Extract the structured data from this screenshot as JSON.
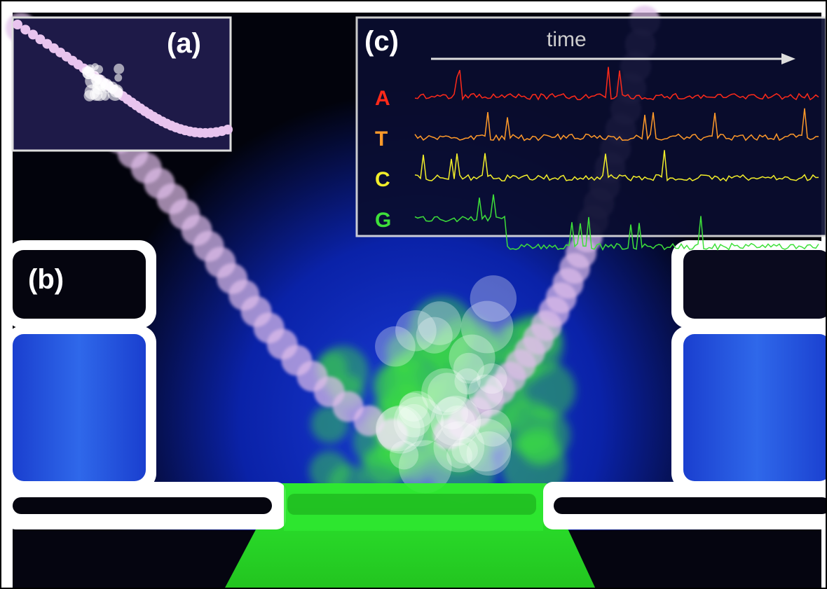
{
  "panels": {
    "a": {
      "label": "(a)"
    },
    "b": {
      "label": "(b)"
    },
    "c": {
      "label": "(c)",
      "axis_label": "time",
      "traces": [
        {
          "label": "A",
          "color": "#ff2a1a"
        },
        {
          "label": "T",
          "color": "#ff9a2a"
        },
        {
          "label": "C",
          "color": "#f2ee2a"
        },
        {
          "label": "G",
          "color": "#3ee03a"
        }
      ]
    }
  }
}
